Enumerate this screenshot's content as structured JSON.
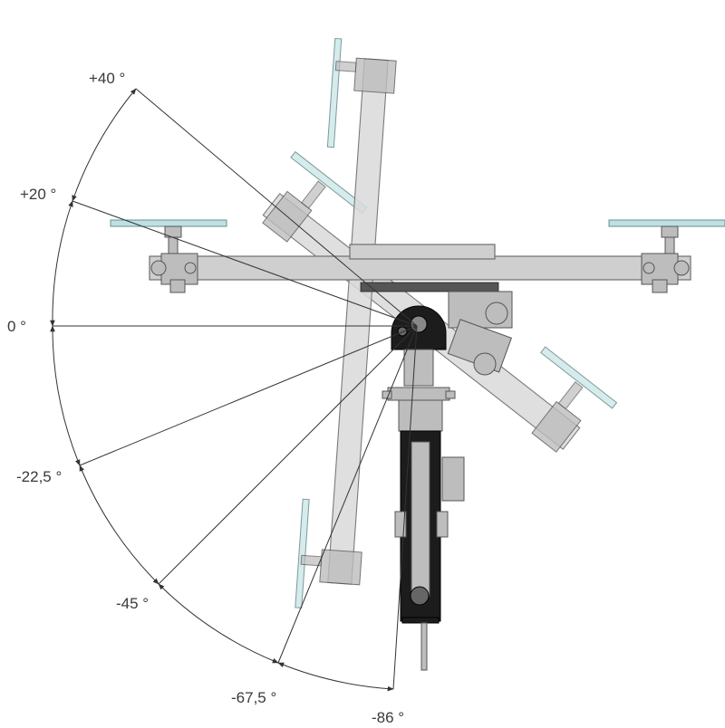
{
  "diagram": {
    "angle_labels": [
      {
        "id": "plus-40",
        "text": "+40 °",
        "angle": 40
      },
      {
        "id": "plus-20",
        "text": "+20 °",
        "angle": 20
      },
      {
        "id": "zero",
        "text": "0 °",
        "angle": 0
      },
      {
        "id": "minus-22-5",
        "text": "-22,5 °",
        "angle": -22.5
      },
      {
        "id": "minus-45",
        "text": "-45 °",
        "angle": -45
      },
      {
        "id": "minus-67-5",
        "text": "-67,5 °",
        "angle": -67.5
      },
      {
        "id": "minus-86",
        "text": "-86 °",
        "angle": -86
      }
    ],
    "colors": {
      "glass": "#bfe0e2",
      "frame": "#cfcfcf",
      "arm": "#1c1c1c",
      "lines": "#333333"
    }
  }
}
